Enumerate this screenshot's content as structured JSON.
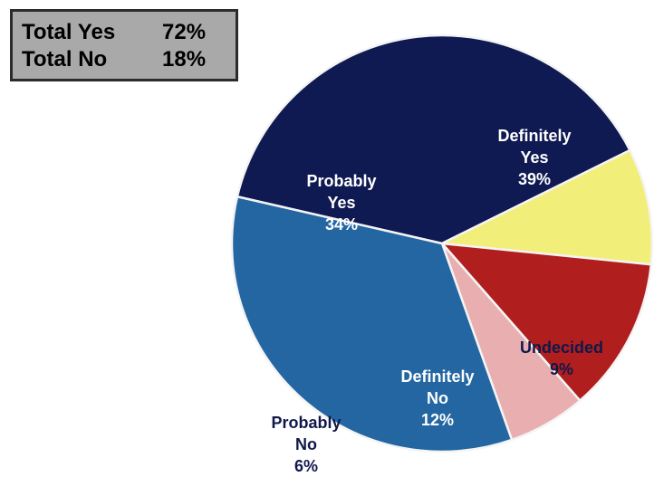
{
  "summary": {
    "total_yes_label": "Total Yes",
    "total_yes_value": "72%",
    "total_no_label": "Total No",
    "total_no_value": "18%"
  },
  "chart_data": {
    "type": "pie",
    "slices": [
      {
        "key": "definitely-yes",
        "lines": [
          "Definitely",
          "Yes",
          "39%"
        ],
        "value": 39,
        "color": "#0f1a52",
        "text_color": "#ffffff"
      },
      {
        "key": "undecided",
        "lines": [
          "Undecided",
          "9%"
        ],
        "value": 9,
        "color": "#f2ee7a",
        "text_color": "#10184a"
      },
      {
        "key": "definitely-no",
        "lines": [
          "Definitely",
          "No",
          "12%"
        ],
        "value": 12,
        "color": "#b01e1e",
        "text_color": "#ffffff"
      },
      {
        "key": "probably-no",
        "lines": [
          "Probably",
          "No",
          "6%"
        ],
        "value": 6,
        "color": "#e9aeb0",
        "text_color": "#10184a"
      },
      {
        "key": "probably-yes",
        "lines": [
          "Probably",
          "Yes",
          "34%"
        ],
        "value": 34,
        "color": "#2366a1",
        "text_color": "#ffffff"
      }
    ]
  }
}
